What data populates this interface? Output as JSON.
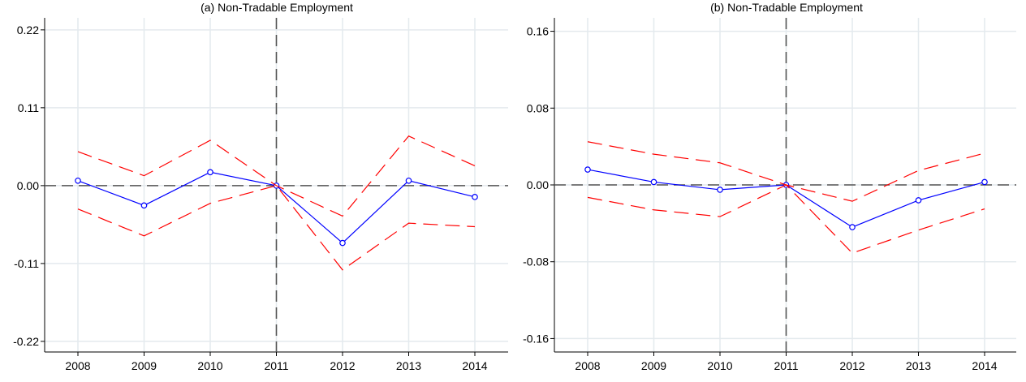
{
  "chart_data": [
    {
      "type": "line",
      "title": "(a) Non-Tradable Employment",
      "x": [
        2008,
        2009,
        2010,
        2011,
        2012,
        2013,
        2014
      ],
      "xticks": [
        "2008",
        "2009",
        "2010",
        "2011",
        "2012",
        "2013",
        "2014"
      ],
      "yticks": [
        "0.22",
        "0.11",
        "0.00",
        "-0.11",
        "-0.22"
      ],
      "ytick_values": [
        0.22,
        0.11,
        0.0,
        -0.11,
        -0.22
      ],
      "ylim": [
        -0.235,
        0.237
      ],
      "reference_x": 2011,
      "reference_y": 0.0,
      "series": [
        {
          "role": "estimate",
          "values": [
            0.007,
            -0.028,
            0.019,
            0.0,
            -0.081,
            0.007,
            -0.016
          ],
          "color": "#0000ff",
          "markers": true
        },
        {
          "role": "upper",
          "values": [
            0.048,
            0.014,
            0.064,
            0.0,
            -0.043,
            0.07,
            0.028
          ],
          "color": "#ff0000",
          "dashed": true
        },
        {
          "role": "lower",
          "values": [
            -0.033,
            -0.071,
            -0.025,
            0.0,
            -0.119,
            -0.053,
            -0.058
          ],
          "color": "#ff0000",
          "dashed": true
        }
      ],
      "grid": true
    },
    {
      "type": "line",
      "title": "(b) Non-Tradable Employment",
      "x": [
        2008,
        2009,
        2010,
        2011,
        2012,
        2013,
        2014
      ],
      "xticks": [
        "2008",
        "2009",
        "2010",
        "2011",
        "2012",
        "2013",
        "2014"
      ],
      "yticks": [
        "0.16",
        "0.08",
        "0.00",
        "-0.08",
        "-0.16"
      ],
      "ytick_values": [
        0.16,
        0.08,
        0.0,
        -0.08,
        -0.16
      ],
      "ylim": [
        -0.174,
        0.174
      ],
      "reference_x": 2011,
      "reference_y": 0.0,
      "series": [
        {
          "role": "estimate",
          "values": [
            0.016,
            0.003,
            -0.005,
            0.0,
            -0.044,
            -0.016,
            0.003
          ],
          "color": "#0000ff",
          "markers": true
        },
        {
          "role": "upper",
          "values": [
            0.045,
            0.032,
            0.023,
            0.0,
            -0.017,
            0.015,
            0.033
          ],
          "color": "#ff0000",
          "dashed": true
        },
        {
          "role": "lower",
          "values": [
            -0.013,
            -0.026,
            -0.033,
            0.0,
            -0.071,
            -0.047,
            -0.025
          ],
          "color": "#ff0000",
          "dashed": true
        }
      ],
      "grid": true
    }
  ]
}
